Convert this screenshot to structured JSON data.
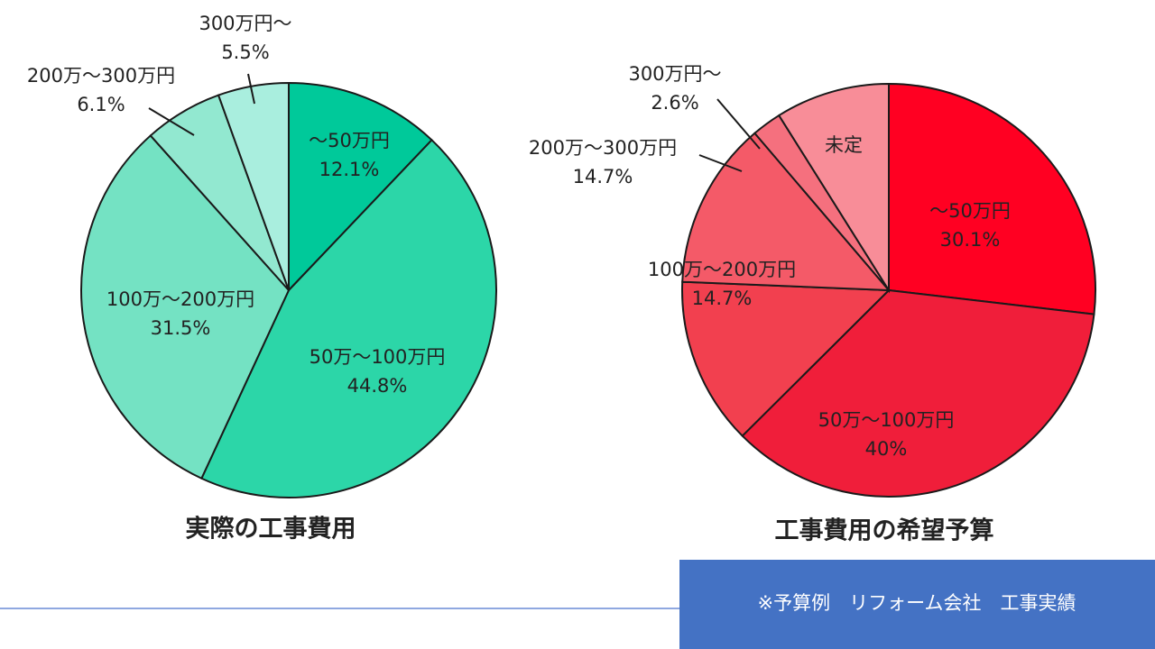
{
  "chart_data": [
    {
      "type": "pie",
      "title": "実際の工事費用",
      "categories": [
        "～50万円",
        "50万～100万円",
        "100万～200万円",
        "200万～300万円",
        "300万円～"
      ],
      "values": [
        12.1,
        44.8,
        31.5,
        6.1,
        5.5
      ],
      "value_labels": [
        "12.1%",
        "44.8%",
        "31.5%",
        "6.1%",
        "5.5%"
      ],
      "colors": [
        "#00c99a",
        "#2cd6a8",
        "#74e2c3",
        "#92e8d0",
        "#a9eede"
      ]
    },
    {
      "type": "pie",
      "title": "工事費用の希望予算",
      "categories": [
        "～50万円",
        "50万～100万円",
        "100万～200万円",
        "200万～300万円",
        "300万円～",
        "未定"
      ],
      "values": [
        30.1,
        40,
        14.7,
        14.7,
        2.6,
        10
      ],
      "value_labels": [
        "30.1%",
        "40%",
        "14.7%",
        "14.7%",
        "2.6%",
        null
      ],
      "colors": [
        "#ff0022",
        "#f01e3a",
        "#f2404f",
        "#f45a68",
        "#f5707e",
        "#f88d98"
      ]
    }
  ],
  "footer_note": "※予算例　リフォーム会社　工事実績"
}
